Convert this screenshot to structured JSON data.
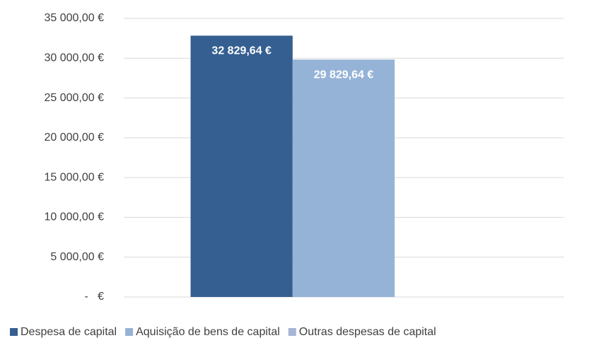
{
  "chart_data": {
    "type": "bar",
    "categories": [
      null
    ],
    "series": [
      {
        "name": "Despesa de capital",
        "color": "#355f91",
        "values": [
          32829.64
        ],
        "value_labels": [
          "32 829,64 €"
        ]
      },
      {
        "name": "Aquisição de bens de capital",
        "color": "#95b3d7",
        "values": [
          29829.64
        ],
        "value_labels": [
          "29 829,64 €"
        ]
      },
      {
        "name": "Outras despesas de capital",
        "color": "#a6b6d6",
        "values": [
          null
        ]
      }
    ],
    "ylim": [
      0,
      35000
    ],
    "yticks": [
      {
        "value": 0,
        "label": "-   €"
      },
      {
        "value": 5000,
        "label": "5 000,00 €"
      },
      {
        "value": 10000,
        "label": "10 000,00 €"
      },
      {
        "value": 15000,
        "label": "15 000,00 €"
      },
      {
        "value": 20000,
        "label": "20 000,00 €"
      },
      {
        "value": 25000,
        "label": "25 000,00 €"
      },
      {
        "value": 30000,
        "label": "30 000,00 €"
      },
      {
        "value": 35000,
        "label": "35 000,00 €"
      }
    ],
    "grid": true,
    "legend": "bottom"
  }
}
